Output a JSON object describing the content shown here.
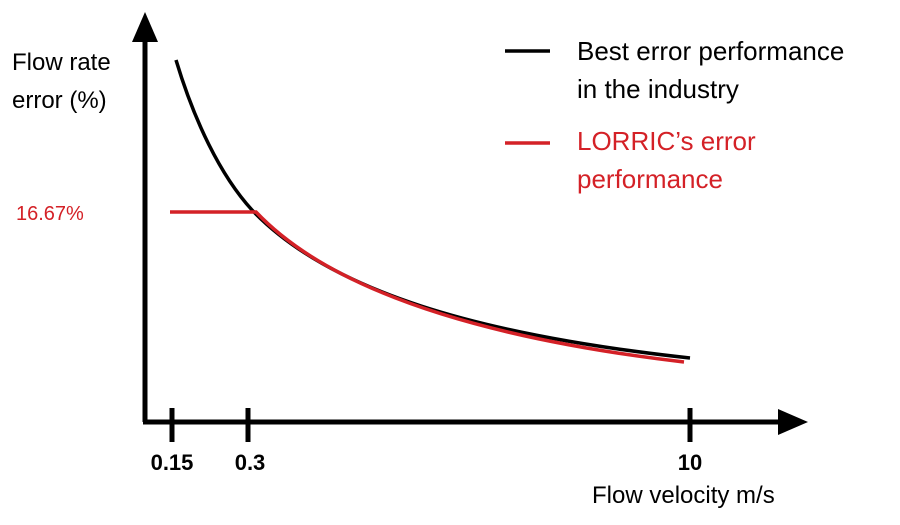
{
  "chart_data": {
    "type": "line",
    "title": "",
    "xlabel": "Flow velocity m/s",
    "ylabel_lines": [
      "Flow rate",
      "error (%)"
    ],
    "x_ticks": [
      "0.15",
      "0.3",
      "10"
    ],
    "y_annotation": "16.67%",
    "grid": false,
    "legend_position": "top-right",
    "colors": {
      "industry": "#000000",
      "lorric": "#d42127"
    },
    "series": [
      {
        "name_lines": [
          "Best error performance",
          "in the industry"
        ],
        "color": "#000000",
        "x": [
          0.15,
          0.3,
          10
        ],
        "y": [
          33.33,
          16.67,
          0.5
        ]
      },
      {
        "name_lines": [
          "LORRIC’s error",
          "performance"
        ],
        "color": "#d42127",
        "x": [
          0.15,
          0.3,
          10
        ],
        "y": [
          16.67,
          16.67,
          0.5
        ]
      }
    ]
  }
}
